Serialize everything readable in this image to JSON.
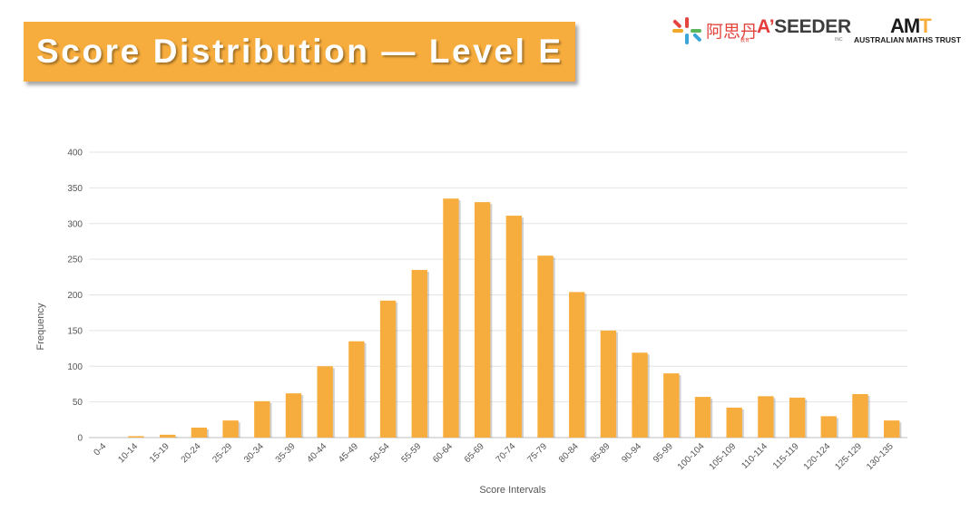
{
  "slide": {
    "title": "Score Distribution — Level E",
    "logos": {
      "ais_text": "阿思丹",
      "ais_sub": "教育",
      "aseeder_accent": "A’",
      "aseeder_text": "SEEDER",
      "aseeder_sub": "INC",
      "amt_mark": "AM",
      "amt_mark_t": "T",
      "amt_text": "AUSTRALIAN MATHS TRUST"
    }
  },
  "chart_data": {
    "type": "bar",
    "title": "",
    "xlabel": "Score Intervals",
    "ylabel": "Frequency",
    "ylim": [
      0,
      400
    ],
    "yticks": [
      0,
      50,
      100,
      150,
      200,
      250,
      300,
      350,
      400
    ],
    "grid": true,
    "bar_color": "#f7ad3d",
    "categories": [
      "0-4",
      "10-14",
      "15-19",
      "20-24",
      "25-29",
      "30-34",
      "35-39",
      "40-44",
      "45-49",
      "50-54",
      "55-59",
      "60-64",
      "65-69",
      "70-74",
      "75-79",
      "80-84",
      "85-89",
      "90-94",
      "95-99",
      "100-104",
      "105-109",
      "110-114",
      "115-119",
      "120-124",
      "125-129",
      "130-135"
    ],
    "values": [
      0,
      2,
      4,
      14,
      24,
      51,
      62,
      100,
      135,
      192,
      235,
      335,
      330,
      311,
      255,
      204,
      150,
      119,
      90,
      57,
      42,
      58,
      56,
      30,
      61,
      24
    ]
  }
}
